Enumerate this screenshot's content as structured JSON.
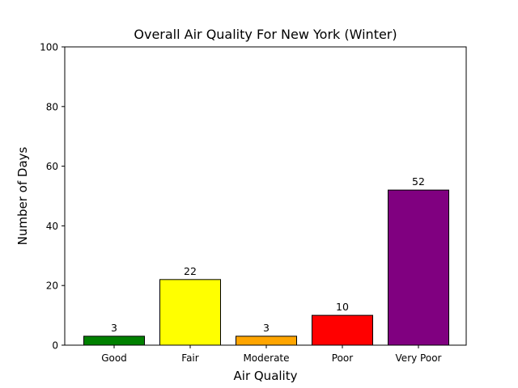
{
  "chart_data": {
    "type": "bar",
    "title": "Overall Air Quality For New York (Winter)",
    "xlabel": "Air Quality",
    "ylabel": "Number of Days",
    "categories": [
      "Good",
      "Fair",
      "Moderate",
      "Poor",
      "Very Poor"
    ],
    "values": [
      3,
      22,
      3,
      10,
      52
    ],
    "colors": [
      "#008000",
      "#ffff00",
      "#ffa500",
      "#ff0000",
      "#800080"
    ],
    "data_labels": [
      "3",
      "22",
      "3",
      "10",
      "52"
    ],
    "ylim": [
      0,
      100
    ],
    "yticks": [
      0,
      20,
      40,
      60,
      80,
      100
    ],
    "ytick_labels": [
      "0",
      "20",
      "40",
      "60",
      "80",
      "100"
    ],
    "grid": false,
    "legend": "none",
    "bar_edge_color": "#000000"
  }
}
